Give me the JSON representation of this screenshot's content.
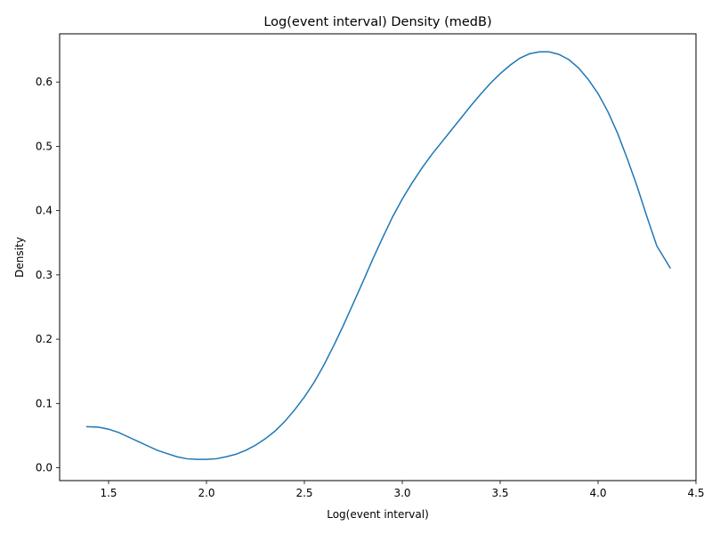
{
  "chart_data": {
    "type": "line",
    "title": "Log(event interval) Density (medB)",
    "xlabel": "Log(event interval)",
    "ylabel": "Density",
    "xlim": [
      1.25,
      4.5
    ],
    "ylim": [
      -0.02,
      0.675
    ],
    "xticks": [
      1.5,
      2.0,
      2.5,
      3.0,
      3.5,
      4.0,
      4.5
    ],
    "xtick_labels": [
      "1.5",
      "2.0",
      "2.5",
      "3.0",
      "3.5",
      "4.0",
      "4.5"
    ],
    "yticks": [
      0.0,
      0.1,
      0.2,
      0.3,
      0.4,
      0.5,
      0.6
    ],
    "ytick_labels": [
      "0.0",
      "0.1",
      "0.2",
      "0.3",
      "0.4",
      "0.5",
      "0.6"
    ],
    "grid": false,
    "line_color": "#1f77b4",
    "series": [
      {
        "x": [
          1.386,
          1.45,
          1.5,
          1.55,
          1.6,
          1.65,
          1.7,
          1.75,
          1.8,
          1.85,
          1.9,
          1.95,
          2.0,
          2.05,
          2.1,
          2.15,
          2.2,
          2.25,
          2.3,
          2.35,
          2.4,
          2.45,
          2.5,
          2.55,
          2.6,
          2.65,
          2.7,
          2.75,
          2.8,
          2.85,
          2.9,
          2.95,
          3.0,
          3.05,
          3.1,
          3.15,
          3.2,
          3.25,
          3.3,
          3.35,
          3.4,
          3.45,
          3.5,
          3.55,
          3.6,
          3.65,
          3.7,
          3.75,
          3.8,
          3.85,
          3.9,
          3.95,
          4.0,
          4.05,
          4.1,
          4.15,
          4.2,
          4.25,
          4.3,
          4.37
        ],
        "y": [
          0.064,
          0.063,
          0.06,
          0.055,
          0.048,
          0.041,
          0.034,
          0.027,
          0.022,
          0.017,
          0.014,
          0.013,
          0.013,
          0.014,
          0.017,
          0.021,
          0.027,
          0.035,
          0.045,
          0.057,
          0.072,
          0.09,
          0.11,
          0.133,
          0.16,
          0.19,
          0.222,
          0.256,
          0.29,
          0.325,
          0.358,
          0.39,
          0.418,
          0.443,
          0.466,
          0.487,
          0.506,
          0.525,
          0.544,
          0.563,
          0.581,
          0.598,
          0.613,
          0.626,
          0.637,
          0.644,
          0.647,
          0.647,
          0.643,
          0.635,
          0.622,
          0.604,
          0.582,
          0.554,
          0.52,
          0.48,
          0.437,
          0.39,
          0.345,
          0.31
        ]
      }
    ]
  }
}
